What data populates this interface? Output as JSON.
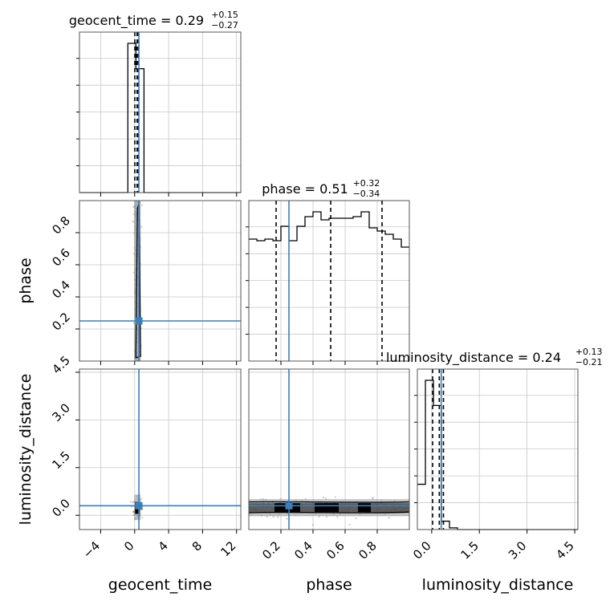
{
  "chart_data": {
    "type": "corner",
    "parameters": [
      "geocent_time",
      "phase",
      "luminosity_distance"
    ],
    "truths": {
      "geocent_time": 0.5,
      "phase": 0.25,
      "luminosity_distance": 0.3
    },
    "truth_color": "#3a7fb8",
    "ranges": {
      "geocent_time": [
        -6.5,
        12.5
      ],
      "phase": [
        0.0,
        1.0
      ],
      "luminosity_distance": [
        -0.45,
        4.6
      ]
    },
    "ticks": {
      "geocent_time": {
        "values": [
          -4,
          0,
          4,
          8,
          12
        ],
        "labels": [
          "−4",
          "0",
          "4",
          "8",
          "12"
        ]
      },
      "phase": {
        "values": [
          0.2,
          0.4,
          0.6,
          0.8
        ],
        "labels": [
          "0.2",
          "0.4",
          "0.6",
          "0.8"
        ]
      },
      "luminosity_distance": {
        "values": [
          0.0,
          1.5,
          3.0,
          4.5
        ],
        "labels": [
          "0.0",
          "1.5",
          "3.0",
          "4.5"
        ]
      }
    },
    "titles": [
      {
        "param": "geocent_time",
        "label": "geocent_time = 0.29",
        "plus": "+0.15",
        "minus": "−0.27"
      },
      {
        "param": "phase",
        "label": "phase = 0.51",
        "plus": "+0.32",
        "minus": "−0.34"
      },
      {
        "param": "luminosity_distance",
        "label": "luminosity_distance = 0.24",
        "plus": "+0.13",
        "minus": "−0.21"
      }
    ],
    "quantiles": {
      "geocent_time": [
        0.02,
        0.29,
        0.44
      ],
      "phase": [
        0.17,
        0.51,
        0.83
      ],
      "luminosity_distance": [
        0.03,
        0.24,
        0.37
      ]
    },
    "histograms": {
      "geocent_time": {
        "edges": [
          -6.5,
          -5.55,
          -4.6,
          -3.65,
          -2.7,
          -1.75,
          -0.8,
          0.15,
          1.1,
          2.05,
          3.0,
          3.95,
          4.9,
          5.85,
          6.8,
          7.75,
          8.7,
          9.65,
          10.6,
          11.55,
          12.5
        ],
        "counts": [
          0,
          0,
          0,
          0,
          0,
          0,
          1.0,
          0.83,
          0,
          0,
          0,
          0,
          0,
          0,
          0,
          0,
          0,
          0,
          0,
          0
        ]
      },
      "phase": {
        "edges": [
          0.0,
          0.05,
          0.1,
          0.15,
          0.2,
          0.25,
          0.3,
          0.35,
          0.4,
          0.45,
          0.5,
          0.55,
          0.6,
          0.65,
          0.7,
          0.75,
          0.8,
          0.85,
          0.9,
          0.95,
          1.0
        ],
        "counts": [
          0.76,
          0.75,
          0.76,
          0.75,
          0.84,
          0.75,
          0.84,
          0.9,
          0.93,
          0.88,
          0.89,
          0.89,
          0.89,
          0.9,
          0.93,
          0.83,
          0.81,
          0.79,
          0.76,
          0.71
        ]
      },
      "luminosity_distance": {
        "edges": [
          -0.45,
          -0.197,
          0.055,
          0.308,
          0.56,
          0.813,
          1.065,
          1.318,
          1.57,
          1.823,
          2.075,
          2.328,
          2.58,
          2.833,
          3.085,
          3.338,
          3.59,
          3.843,
          4.095,
          4.348,
          4.6
        ],
        "counts": [
          0.27,
          0.89,
          0.74,
          0.05,
          0.01,
          0,
          0,
          0,
          0,
          0,
          0,
          0,
          0,
          0,
          0,
          0,
          0,
          0,
          0,
          0
        ]
      }
    },
    "grid": true
  }
}
